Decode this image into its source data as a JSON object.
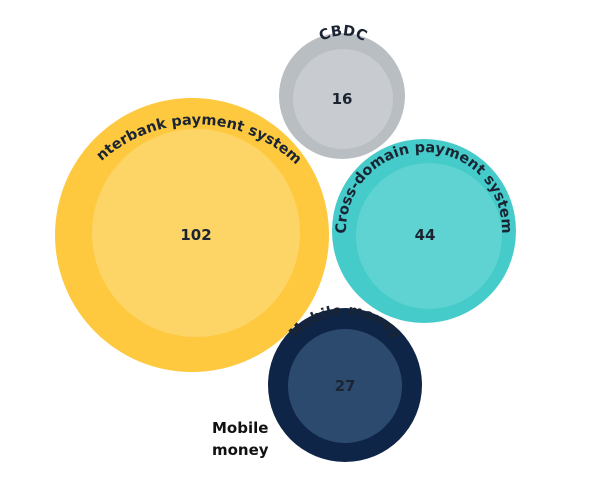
{
  "chart_data": {
    "type": "bubble",
    "title": "",
    "series": [
      {
        "label": "CBDC",
        "value": 16,
        "color": "#c5c9cd"
      },
      {
        "label": "Interbank payment system",
        "value": 102,
        "color": "#fdd055"
      },
      {
        "label": "Cross-domain payment system",
        "value": 44,
        "color": "#5fd2d0"
      },
      {
        "label": "Mobile money",
        "value": 27,
        "color": "#17385f"
      }
    ],
    "external_labels": [
      "Mobile money"
    ]
  },
  "colors": {
    "text_dark": "#1b2433",
    "mobile_value_text": "#dde6f2"
  }
}
